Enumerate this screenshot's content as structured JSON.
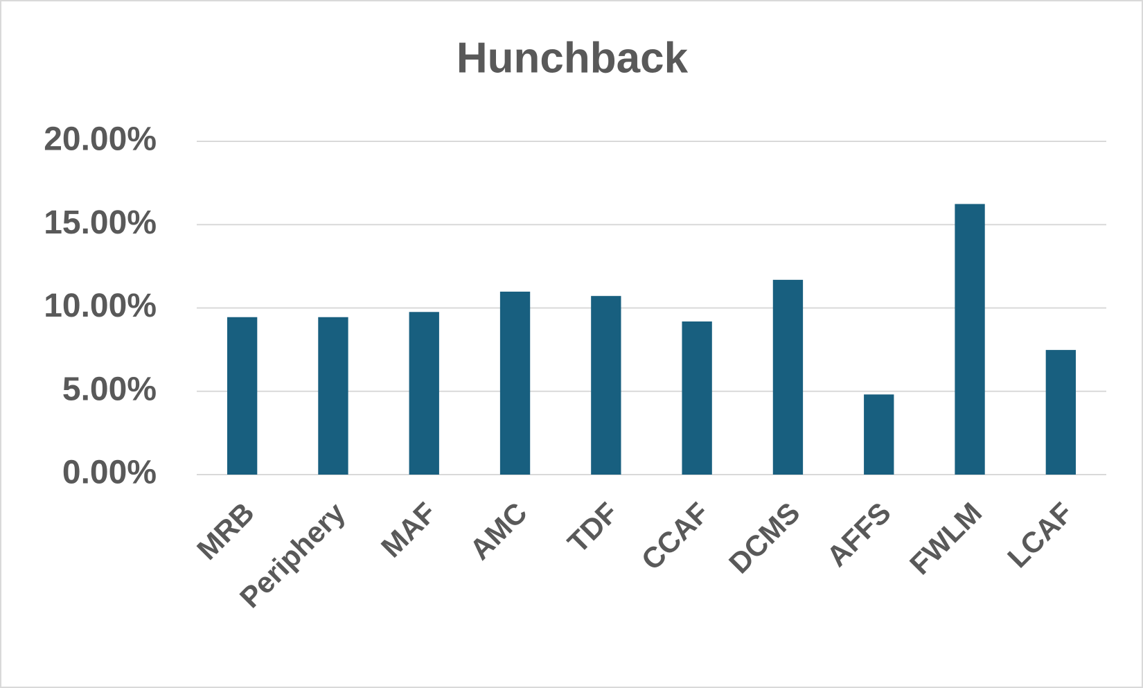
{
  "chart_data": {
    "type": "bar",
    "title": "Hunchback",
    "categories": [
      "MRB",
      "Periphery",
      "MAF",
      "AMC",
      "TDF",
      "CCAF",
      "DCMS",
      "AFFS",
      "FWLM",
      "LCAF"
    ],
    "values": [
      9.45,
      9.45,
      9.76,
      10.98,
      10.72,
      9.19,
      11.69,
      4.81,
      16.24,
      7.48
    ],
    "color": "#185f7f",
    "ylim": [
      0,
      20
    ],
    "yticks": [
      {
        "value": 0,
        "label": "0.00%"
      },
      {
        "value": 5,
        "label": "5.00%"
      },
      {
        "value": 10,
        "label": "10.00%"
      },
      {
        "value": 15,
        "label": "15.00%"
      },
      {
        "value": 20,
        "label": "20.00%"
      }
    ],
    "grid": true
  }
}
